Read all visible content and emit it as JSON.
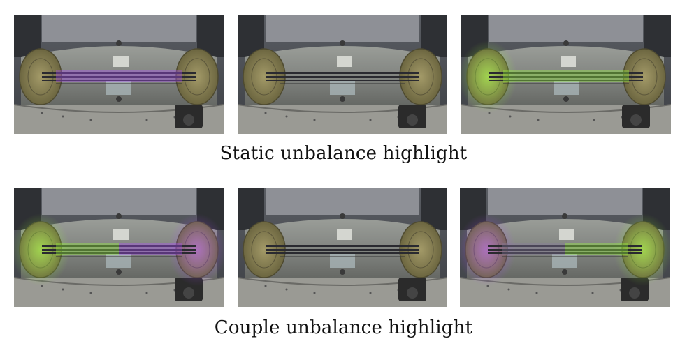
{
  "figure": {
    "rows": [
      {
        "caption": "Static unbalance highlight",
        "panels": [
          {
            "highlight": "purple",
            "left_disc_glow": "none",
            "right_disc_glow": "none",
            "shaft_glow_color": "#b04cff"
          },
          {
            "highlight": "none",
            "left_disc_glow": "none",
            "right_disc_glow": "none",
            "shaft_glow_color": "#6a5a7a"
          },
          {
            "highlight": "green",
            "left_disc_glow": "green",
            "right_disc_glow": "none",
            "shaft_glow_color": "#9cff3a"
          }
        ]
      },
      {
        "caption": "Couple unbalance highlight",
        "panels": [
          {
            "highlight": "green-left/purple-right",
            "left_disc_glow": "green",
            "right_disc_glow": "purple",
            "shaft_glow_color": "#b04cff"
          },
          {
            "highlight": "none",
            "left_disc_glow": "none",
            "right_disc_glow": "none",
            "shaft_glow_color": "#6a5a7a"
          },
          {
            "highlight": "purple-left/green-right",
            "left_disc_glow": "purple",
            "right_disc_glow": "green",
            "shaft_glow_color": "#9cff3a"
          }
        ]
      }
    ],
    "colors": {
      "background_wall": "#4a4d52",
      "housing": "#8c8f8a",
      "disc": "#8a8256",
      "shaft": "#2a2a30",
      "purple_glow": "#b04cff",
      "green_glow": "#9cff3a"
    }
  }
}
